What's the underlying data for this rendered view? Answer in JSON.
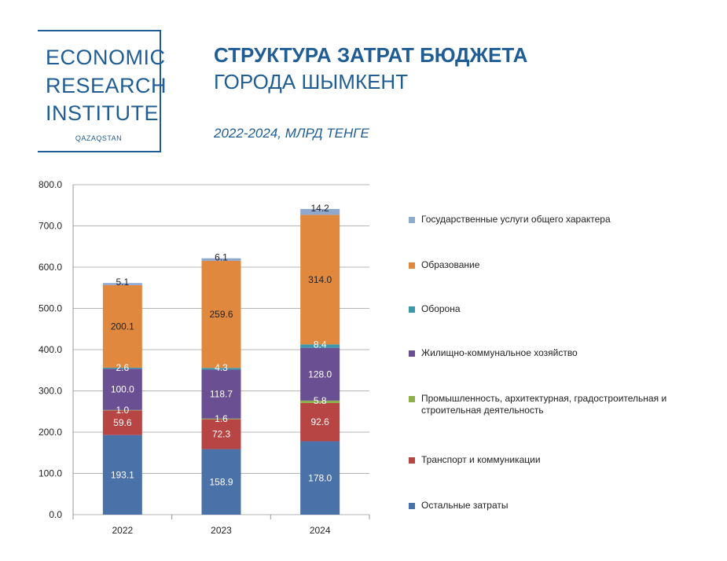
{
  "logo": {
    "line1": "ECONOMIC",
    "line2": "RESEARCH",
    "line3": "INSTITUTE",
    "sub": "QAZAQSTAN"
  },
  "header": {
    "title_bold": "СТРУКТУРА ЗАТРАТ БЮДЖЕТА",
    "title_regular": "ГОРОДА ШЫМКЕНТ",
    "subtitle": "2022-2024, МЛРД ТЕНГЕ"
  },
  "chart_data": {
    "type": "bar",
    "stacked": true,
    "categories": [
      "2022",
      "2023",
      "2024"
    ],
    "ylim": [
      0,
      800
    ],
    "yticks": [
      "0.0",
      "100.0",
      "200.0",
      "300.0",
      "400.0",
      "500.0",
      "600.0",
      "700.0",
      "800.0"
    ],
    "grid": true,
    "legend_position": "right",
    "series": [
      {
        "name": "Остальные затраты",
        "color": "#4a72a8",
        "values": [
          193.1,
          158.9,
          178.0
        ],
        "labels": [
          "193.1",
          "158.9",
          "178.0"
        ],
        "label_color": "#ffffff"
      },
      {
        "name": "Транспорт и коммуникации",
        "color": "#b64543",
        "values": [
          59.6,
          72.3,
          92.6
        ],
        "labels": [
          "59.6",
          "72.3",
          "92.6"
        ],
        "label_color": "#ffffff"
      },
      {
        "name": "Промышленность, архитектурная, градостроительная и строительная деятельность",
        "color": "#8fae4c",
        "values": [
          1.0,
          1.6,
          5.8
        ],
        "labels": [
          "1.0",
          "1.6",
          "5.8"
        ],
        "label_color": "#ffffff"
      },
      {
        "name": "Жилищно-коммунальное хозяйство",
        "color": "#6a4f93",
        "values": [
          100.0,
          118.7,
          128.0
        ],
        "labels": [
          "100.0",
          "118.7",
          "128.0"
        ],
        "label_color": "#ffffff"
      },
      {
        "name": "Оборона",
        "color": "#3c97ad",
        "values": [
          2.6,
          4.3,
          8.4
        ],
        "labels": [
          "2.6",
          "4.3",
          "8.4"
        ],
        "label_color": "#ffffff"
      },
      {
        "name": "Образование",
        "color": "#e0883e",
        "values": [
          200.1,
          259.6,
          314.0
        ],
        "labels": [
          "200.1",
          "259.6",
          "314.0"
        ],
        "label_color": "#222222"
      },
      {
        "name": "Государственные услуги общего характера",
        "color": "#8fa8cf",
        "values": [
          5.1,
          6.1,
          14.2
        ],
        "labels": [
          "5.1",
          "6.1",
          "14.2"
        ],
        "label_color": "#222222"
      }
    ]
  }
}
